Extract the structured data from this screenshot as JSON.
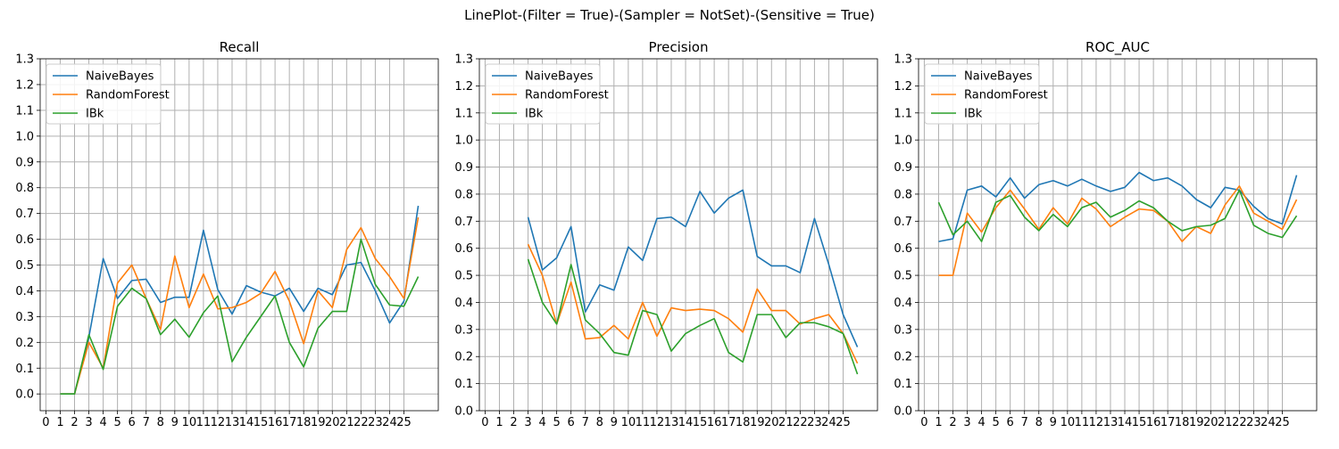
{
  "figure_title": "LinePlot-(Filter = True)-(Sampler = NotSet)-(Sensitive = True)",
  "colors": {
    "NaiveBayes": "#1f77b4",
    "RandomForest": "#ff7f0e",
    "IBk": "#2ca02c",
    "grid": "#b0b0b0"
  },
  "chart_data": [
    {
      "type": "line",
      "title": "Recall",
      "xlabel": "",
      "ylabel": "",
      "xlim": [
        -0.4,
        27.4
      ],
      "ylim": [
        -0.065,
        1.3
      ],
      "xticks": [
        "0",
        "1",
        "2",
        "3",
        "4",
        "5",
        "6",
        "7",
        "8",
        "9",
        "10",
        "11",
        "12",
        "13",
        "14",
        "15",
        "16",
        "17",
        "18",
        "19",
        "20",
        "21",
        "22",
        "23",
        "24",
        "25"
      ],
      "yticks": [
        "0.0",
        "0.1",
        "0.2",
        "0.3",
        "0.4",
        "0.5",
        "0.6",
        "0.7",
        "0.8",
        "0.9",
        "1.0",
        "1.1",
        "1.2",
        "1.3"
      ],
      "legend": [
        "NaiveBayes",
        "RandomForest",
        "IBk"
      ],
      "legend_position": "upper-left",
      "grid": true,
      "x": [
        1,
        2,
        3,
        4,
        5,
        6,
        7,
        8,
        9,
        10,
        11,
        12,
        13,
        14,
        15,
        16,
        17,
        18,
        19,
        20,
        21,
        22,
        23,
        24,
        25,
        26
      ],
      "series": [
        {
          "name": "NaiveBayes",
          "values": [
            0.0,
            0.0,
            0.22,
            0.525,
            0.37,
            0.44,
            0.445,
            0.355,
            0.375,
            0.375,
            0.635,
            0.405,
            0.31,
            0.42,
            0.395,
            0.38,
            0.41,
            0.32,
            0.41,
            0.385,
            0.5,
            0.51,
            0.4,
            0.275,
            0.36,
            0.73
          ]
        },
        {
          "name": "RandomForest",
          "values": [
            0.0,
            0.0,
            0.2,
            0.1,
            0.43,
            0.5,
            0.37,
            0.25,
            0.535,
            0.335,
            0.465,
            0.33,
            0.335,
            0.355,
            0.39,
            0.475,
            0.36,
            0.195,
            0.4,
            0.335,
            0.56,
            0.645,
            0.525,
            0.455,
            0.37,
            0.685
          ]
        },
        {
          "name": "IBk",
          "values": [
            0.0,
            0.0,
            0.23,
            0.095,
            0.34,
            0.41,
            0.37,
            0.23,
            0.29,
            0.22,
            0.315,
            0.38,
            0.125,
            0.22,
            0.3,
            0.38,
            0.2,
            0.105,
            0.255,
            0.32,
            0.32,
            0.6,
            0.425,
            0.345,
            0.34,
            0.455
          ]
        }
      ]
    },
    {
      "type": "line",
      "title": "Precision",
      "xlabel": "",
      "ylabel": "",
      "xlim": [
        -0.4,
        27.4
      ],
      "ylim": [
        0.0,
        1.3
      ],
      "xticks": [
        "0",
        "1",
        "2",
        "3",
        "4",
        "5",
        "6",
        "7",
        "8",
        "9",
        "10",
        "11",
        "12",
        "13",
        "14",
        "15",
        "16",
        "17",
        "18",
        "19",
        "20",
        "21",
        "22",
        "23",
        "24",
        "25"
      ],
      "yticks": [
        "0.0",
        "0.1",
        "0.2",
        "0.3",
        "0.4",
        "0.5",
        "0.6",
        "0.7",
        "0.8",
        "0.9",
        "1.0",
        "1.1",
        "1.2",
        "1.3"
      ],
      "legend": [
        "NaiveBayes",
        "RandomForest",
        "IBk"
      ],
      "legend_position": "upper-left",
      "grid": true,
      "x": [
        3,
        4,
        5,
        6,
        7,
        8,
        9,
        10,
        11,
        12,
        13,
        14,
        15,
        16,
        17,
        18,
        19,
        20,
        21,
        22,
        23,
        24,
        25,
        26
      ],
      "series": [
        {
          "name": "NaiveBayes",
          "values": [
            0.715,
            0.52,
            0.565,
            0.68,
            0.365,
            0.465,
            0.445,
            0.605,
            0.555,
            0.71,
            0.715,
            0.68,
            0.81,
            0.73,
            0.785,
            0.815,
            0.57,
            0.535,
            0.535,
            0.51,
            0.71,
            0.54,
            0.355,
            0.235
          ]
        },
        {
          "name": "RandomForest",
          "values": [
            0.615,
            0.5,
            0.32,
            0.475,
            0.265,
            0.27,
            0.315,
            0.265,
            0.4,
            0.275,
            0.38,
            0.37,
            0.375,
            0.37,
            0.34,
            0.29,
            0.45,
            0.37,
            0.37,
            0.32,
            0.34,
            0.355,
            0.285,
            0.175
          ]
        },
        {
          "name": "IBk",
          "values": [
            0.56,
            0.4,
            0.32,
            0.54,
            0.335,
            0.285,
            0.215,
            0.205,
            0.37,
            0.355,
            0.22,
            0.285,
            0.315,
            0.34,
            0.215,
            0.18,
            0.355,
            0.355,
            0.27,
            0.325,
            0.325,
            0.31,
            0.285,
            0.135
          ]
        }
      ]
    },
    {
      "type": "line",
      "title": "ROC_AUC",
      "xlabel": "",
      "ylabel": "",
      "xlim": [
        -0.4,
        27.4
      ],
      "ylim": [
        0.0,
        1.3
      ],
      "xticks": [
        "0",
        "1",
        "2",
        "3",
        "4",
        "5",
        "6",
        "7",
        "8",
        "9",
        "10",
        "11",
        "12",
        "13",
        "14",
        "15",
        "16",
        "17",
        "18",
        "19",
        "20",
        "21",
        "22",
        "23",
        "24",
        "25"
      ],
      "yticks": [
        "0.0",
        "0.1",
        "0.2",
        "0.3",
        "0.4",
        "0.5",
        "0.6",
        "0.7",
        "0.8",
        "0.9",
        "1.0",
        "1.1",
        "1.2",
        "1.3"
      ],
      "legend": [
        "NaiveBayes",
        "RandomForest",
        "IBk"
      ],
      "legend_position": "upper-left",
      "grid": true,
      "x": [
        1,
        2,
        3,
        4,
        5,
        6,
        7,
        8,
        9,
        10,
        11,
        12,
        13,
        14,
        15,
        16,
        17,
        18,
        19,
        20,
        21,
        22,
        23,
        24,
        25,
        26
      ],
      "series": [
        {
          "name": "NaiveBayes",
          "values": [
            0.625,
            0.635,
            0.815,
            0.83,
            0.79,
            0.86,
            0.785,
            0.835,
            0.85,
            0.83,
            0.855,
            0.83,
            0.81,
            0.825,
            0.88,
            0.85,
            0.86,
            0.83,
            0.78,
            0.75,
            0.825,
            0.815,
            0.755,
            0.71,
            0.69,
            0.87
          ]
        },
        {
          "name": "RandomForest",
          "values": [
            0.5,
            0.5,
            0.73,
            0.66,
            0.75,
            0.815,
            0.745,
            0.67,
            0.75,
            0.69,
            0.785,
            0.745,
            0.68,
            0.715,
            0.745,
            0.74,
            0.7,
            0.625,
            0.68,
            0.655,
            0.76,
            0.83,
            0.73,
            0.7,
            0.67,
            0.78
          ]
        },
        {
          "name": "IBk",
          "values": [
            0.77,
            0.65,
            0.7,
            0.625,
            0.77,
            0.795,
            0.715,
            0.665,
            0.725,
            0.68,
            0.75,
            0.77,
            0.715,
            0.74,
            0.775,
            0.75,
            0.7,
            0.665,
            0.68,
            0.685,
            0.71,
            0.815,
            0.685,
            0.655,
            0.64,
            0.72
          ]
        }
      ]
    }
  ]
}
